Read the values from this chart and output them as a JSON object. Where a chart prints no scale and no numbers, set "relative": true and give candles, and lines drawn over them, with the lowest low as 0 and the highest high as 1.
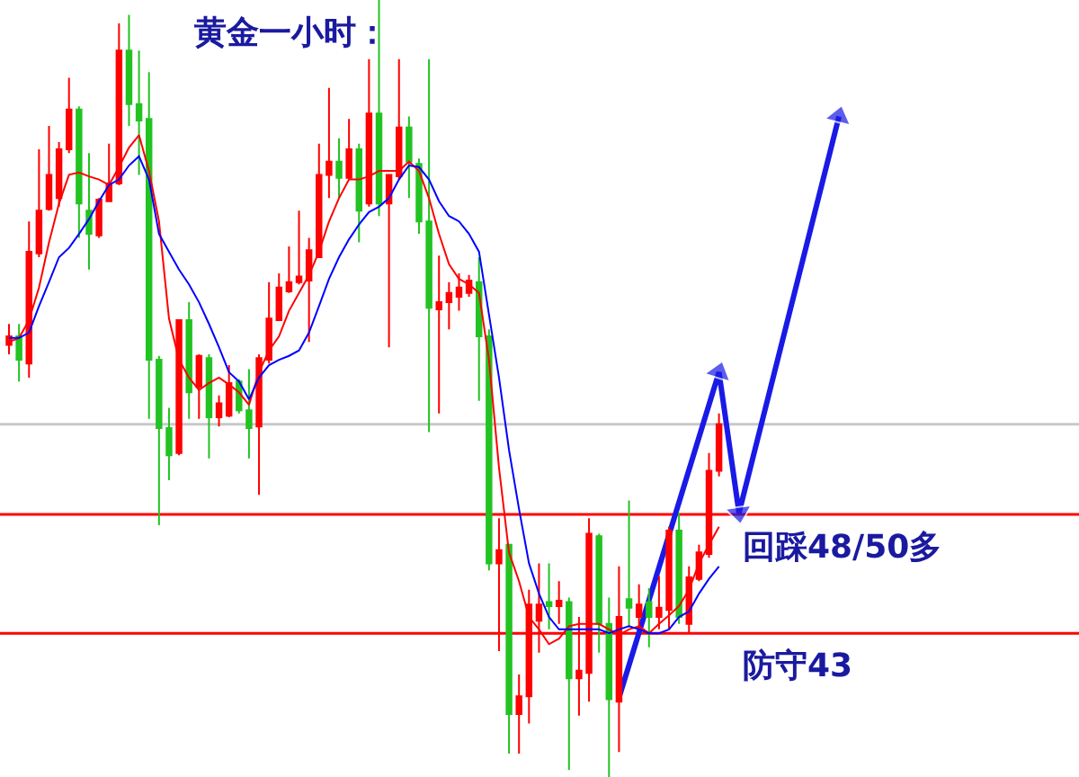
{
  "chart_data": {
    "type": "candlestick",
    "title": "黄金一小时：",
    "relative": true,
    "tick_labels": false,
    "categories": [
      null,
      null,
      null,
      null,
      null,
      null,
      null,
      null,
      null,
      null,
      null,
      null,
      null,
      null,
      null,
      null,
      null,
      null,
      null,
      null,
      null,
      null,
      null,
      null,
      null,
      null,
      null,
      null,
      null,
      null,
      null,
      null,
      null,
      null,
      null,
      null,
      null,
      null,
      null,
      null,
      null,
      null,
      null,
      null,
      null,
      null,
      null,
      null,
      null,
      null,
      null,
      null,
      null,
      null,
      null,
      null,
      null,
      null,
      null,
      null,
      null,
      null,
      null,
      null,
      null,
      null,
      null,
      null,
      null,
      null,
      null,
      null,
      null,
      null,
      null,
      null,
      null,
      null,
      null,
      null,
      null,
      null,
      null,
      null
    ],
    "colors": [
      "#ff0000",
      "#22c322",
      "#ff0000",
      "#ff0000",
      "#ff0000",
      "#ff0000",
      "#ff0000",
      "#22c322",
      "#22c322",
      "#ff0000",
      "#ff0000",
      "#ff0000",
      "#22c322",
      "#22c322",
      "#22c322",
      "#22c322",
      "#22c322",
      "#ff0000",
      "#22c322",
      "#ff0000",
      "#22c322",
      "#ff0000",
      "#ff0000",
      "#22c322",
      "#22c322",
      "#ff0000",
      "#ff0000",
      "#ff0000",
      "#ff0000",
      "#ff0000",
      "#ff0000",
      "#ff0000",
      "#ff0000",
      "#22c322",
      "#ff0000",
      "#22c322",
      "#ff0000",
      "#22c322",
      "#ff0000",
      "#ff0000",
      "#22c322",
      "#22c322",
      "#22c322",
      "#ff0000",
      "#ff0000",
      "#ff0000",
      "#ff0000",
      "#22c322",
      "#22c322",
      "#ff0000",
      "#22c322",
      "#ff0000",
      "#ff0000",
      "#ff0000",
      "#22c322",
      "#ff0000",
      "#22c322",
      "#ff0000",
      "#ff0000",
      "#22c322",
      "#22c322",
      "#ff0000",
      "#22c322",
      "#ff0000",
      "#22c322",
      "#ff0000",
      "#ff0000",
      "#22c322",
      "#ff0000",
      "#ff0000",
      "#ff0000",
      "#ff0000",
      null,
      null,
      null,
      null,
      null,
      null,
      null,
      null,
      null,
      null,
      null,
      null
    ],
    "ohlc": [
      [
        0.556,
        0.583,
        0.544,
        0.567
      ],
      [
        0.567,
        0.583,
        0.509,
        0.537
      ],
      [
        0.532,
        0.715,
        0.514,
        0.676
      ],
      [
        0.674,
        0.808,
        0.669,
        0.729
      ],
      [
        0.731,
        0.838,
        0.729,
        0.775
      ],
      [
        0.745,
        0.817,
        0.734,
        0.808
      ],
      [
        0.808,
        0.9,
        0.803,
        0.859
      ],
      [
        0.859,
        0.863,
        0.694,
        0.738
      ],
      [
        0.729,
        0.803,
        0.653,
        0.699
      ],
      [
        0.697,
        0.745,
        0.694,
        0.743
      ],
      [
        0.741,
        0.815,
        0.741,
        0.764
      ],
      [
        0.764,
        0.97,
        0.762,
        0.935
      ],
      [
        0.935,
        0.981,
        0.838,
        0.866
      ],
      [
        0.866,
        0.935,
        0.775,
        0.845
      ],
      [
        0.847,
        0.907,
        0.461,
        0.537
      ],
      [
        0.537,
        0.542,
        0.324,
        0.449
      ],
      [
        0.449,
        0.475,
        0.382,
        0.414
      ],
      [
        0.417,
        0.588,
        0.414,
        0.588
      ],
      [
        0.588,
        0.611,
        0.461,
        0.495
      ],
      [
        0.502,
        0.544,
        0.461,
        0.542
      ],
      [
        0.539,
        0.544,
        0.41,
        0.463
      ],
      [
        0.463,
        0.491,
        0.451,
        0.481
      ],
      [
        0.465,
        0.53,
        0.463,
        0.507
      ],
      [
        0.509,
        0.512,
        0.468,
        0.472
      ],
      [
        0.472,
        0.525,
        0.41,
        0.449
      ],
      [
        0.451,
        0.544,
        0.363,
        0.539
      ],
      [
        0.537,
        0.637,
        0.532,
        0.59
      ],
      [
        0.588,
        0.648,
        0.588,
        0.63
      ],
      [
        0.625,
        0.683,
        0.623,
        0.637
      ],
      [
        0.637,
        0.729,
        0.634,
        0.644
      ],
      [
        0.639,
        0.694,
        0.56,
        0.678
      ],
      [
        0.669,
        0.815,
        0.669,
        0.775
      ],
      [
        0.775,
        0.887,
        0.745,
        0.792
      ],
      [
        0.792,
        0.822,
        0.745,
        0.771
      ],
      [
        0.771,
        0.847,
        0.769,
        0.808
      ],
      [
        0.808,
        0.815,
        0.688,
        0.729
      ],
      [
        0.738,
        0.924,
        0.734,
        0.854
      ],
      [
        0.854,
        1.0,
        0.722,
        0.738
      ],
      [
        0.738,
        0.775,
        0.553,
        0.775
      ],
      [
        0.773,
        0.924,
        0.769,
        0.836
      ],
      [
        0.836,
        0.85,
        0.745,
        0.792
      ],
      [
        0.789,
        0.796,
        0.699,
        0.715
      ],
      [
        0.715,
        0.924,
        0.444,
        0.604
      ],
      [
        0.602,
        0.671,
        0.468,
        0.611
      ],
      [
        0.611,
        0.637,
        0.576,
        0.623
      ],
      [
        0.618,
        0.648,
        0.6,
        0.63
      ],
      [
        0.623,
        0.646,
        0.618,
        0.639
      ],
      [
        0.637,
        0.669,
        0.484,
        0.567
      ],
      [
        0.567,
        0.576,
        0.266,
        0.275
      ],
      [
        0.275,
        0.333,
        0.162,
        0.292
      ],
      [
        0.299,
        0.299,
        0.03,
        0.081
      ],
      [
        0.081,
        0.132,
        0.03,
        0.104
      ],
      [
        0.104,
        0.241,
        0.069,
        0.222
      ],
      [
        0.201,
        0.275,
        0.16,
        0.222
      ],
      [
        0.225,
        0.275,
        0.19,
        0.22
      ],
      [
        0.22,
        0.252,
        0.197,
        0.227
      ],
      [
        0.225,
        0.231,
        0.009,
        0.127
      ],
      [
        0.127,
        0.206,
        0.079,
        0.137
      ],
      [
        0.134,
        0.333,
        0.097,
        0.313
      ],
      [
        0.31,
        0.313,
        0.16,
        0.197
      ],
      [
        0.197,
        0.231,
        0.0,
        0.1
      ],
      [
        0.097,
        0.271,
        0.032,
        0.206
      ],
      [
        0.229,
        0.356,
        0.194,
        0.218
      ],
      [
        0.206,
        0.248,
        0.19,
        0.222
      ],
      [
        0.225,
        0.243,
        0.167,
        0.206
      ],
      [
        0.206,
        0.259,
        0.19,
        0.218
      ],
      [
        0.215,
        0.322,
        0.19,
        0.317
      ],
      [
        0.317,
        0.34,
        0.197,
        0.206
      ],
      [
        0.197,
        0.271,
        0.185,
        0.257
      ],
      [
        0.255,
        0.299,
        0.252,
        0.289
      ],
      [
        0.287,
        0.417,
        0.282,
        0.394
      ],
      [
        0.394,
        0.468,
        0.387,
        0.454
      ],
      null,
      null,
      null,
      null,
      null,
      null,
      null,
      null,
      null,
      null,
      null,
      null
    ],
    "series": [
      {
        "type": "line",
        "color": "#ff0000",
        "values": [
          0.56,
          0.565,
          0.588,
          0.63,
          0.688,
          0.738,
          0.775,
          0.778,
          0.773,
          0.769,
          0.762,
          0.785,
          0.81,
          0.826,
          0.78,
          0.715,
          0.59,
          0.537,
          0.514,
          0.498,
          0.507,
          0.514,
          0.505,
          0.495,
          0.479,
          0.521,
          0.549,
          0.567,
          0.6,
          0.623,
          0.646,
          0.676,
          0.715,
          0.745,
          0.769,
          0.769,
          0.773,
          0.78,
          0.78,
          0.78,
          0.792,
          0.78,
          0.745,
          0.699,
          0.66,
          0.641,
          0.634,
          0.623,
          0.537,
          0.398,
          0.289,
          0.252,
          0.206,
          0.19,
          0.171,
          0.178,
          0.194,
          0.197,
          0.197,
          0.197,
          0.19,
          0.183,
          0.19,
          0.194,
          0.185,
          0.197,
          0.208,
          0.22,
          0.241,
          0.275,
          0.299,
          0.322,
          null,
          null,
          null,
          null,
          null,
          null,
          null,
          null,
          null,
          null,
          null,
          null
        ]
      },
      {
        "type": "line",
        "color": "#0000ff",
        "values": [
          0.565,
          0.565,
          0.572,
          0.606,
          0.637,
          0.669,
          0.681,
          0.699,
          0.718,
          0.741,
          0.762,
          0.769,
          0.787,
          0.799,
          0.769,
          0.699,
          0.676,
          0.653,
          0.634,
          0.611,
          0.583,
          0.553,
          0.521,
          0.509,
          0.486,
          0.514,
          0.53,
          0.537,
          0.542,
          0.549,
          0.572,
          0.606,
          0.641,
          0.669,
          0.692,
          0.711,
          0.727,
          0.734,
          0.745,
          0.769,
          0.787,
          0.785,
          0.769,
          0.741,
          0.722,
          0.715,
          0.699,
          0.676,
          0.595,
          0.514,
          0.421,
          0.345,
          0.275,
          0.236,
          0.206,
          0.19,
          0.19,
          0.19,
          0.19,
          0.19,
          0.185,
          0.19,
          0.194,
          0.19,
          0.185,
          0.185,
          0.19,
          0.206,
          0.213,
          0.236,
          0.255,
          0.271,
          null,
          null,
          null,
          null,
          null,
          null,
          null,
          null,
          null,
          null,
          null,
          null
        ]
      },
      {
        "type": "line",
        "marker": "triangle",
        "color": "#1a1ae6",
        "values": [
          null,
          null,
          null,
          null,
          null,
          null,
          null,
          null,
          null,
          null,
          null,
          null,
          null,
          null,
          null,
          null,
          null,
          null,
          null,
          null,
          null,
          null,
          null,
          null,
          null,
          null,
          null,
          null,
          null,
          null,
          null,
          null,
          null,
          null,
          null,
          null,
          null,
          null,
          null,
          null,
          null,
          null,
          null,
          null,
          null,
          null,
          null,
          null,
          null,
          null,
          null,
          null,
          null,
          null,
          null,
          null,
          null,
          null,
          null,
          null,
          null,
          0.102,
          null,
          null,
          null,
          null,
          null,
          null,
          null,
          null,
          null,
          0.521,
          null,
          0.34,
          null,
          null,
          null,
          null,
          null,
          null,
          null,
          null,
          null,
          0.85
        ]
      }
    ],
    "ref_lines": [
      {
        "axis": "y",
        "value": 0.454,
        "color": "#c8c8c8"
      },
      {
        "axis": "y",
        "value": 0.338,
        "color": "#ff0000",
        "label": "回踩48/50多"
      },
      {
        "axis": "y",
        "value": 0.185,
        "color": "#ff0000",
        "label": "防守43"
      }
    ]
  }
}
